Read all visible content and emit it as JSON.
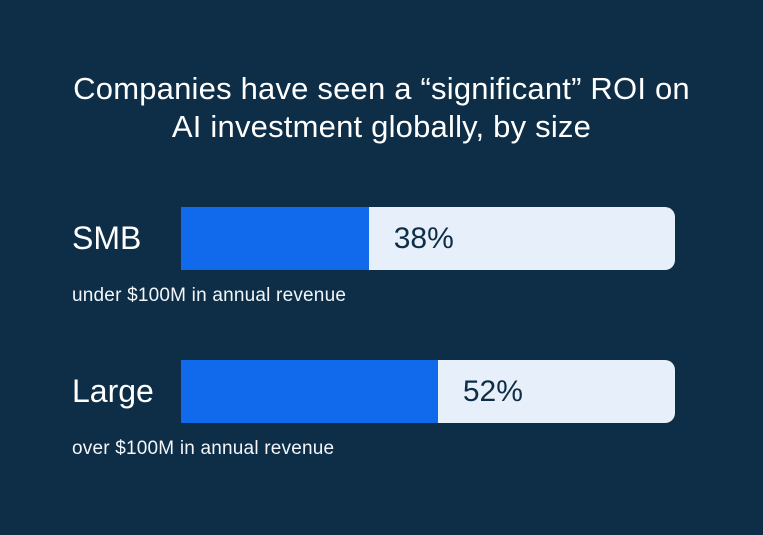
{
  "header": {
    "title_line1": "Companies have seen a “significant” ROI on",
    "title_line2": "AI investment globally, by size"
  },
  "colors": {
    "background": "#0d2e46",
    "bar_fill": "#1169ec",
    "bar_track": "#e7effa",
    "category_text": "#ffffff",
    "value_text": "#0d2e46"
  },
  "chart_data": {
    "type": "bar",
    "orientation": "horizontal",
    "title": "Companies have seen a “significant” ROI on AI investment globally, by size",
    "categories": [
      "SMB",
      "Large"
    ],
    "category_sublabels": [
      "under $100M in annual revenue",
      "over $100M in annual revenue"
    ],
    "values": [
      38,
      52
    ],
    "value_labels": [
      "38%",
      "52%"
    ],
    "unit": "%",
    "xlim": [
      0,
      100
    ],
    "grid": false,
    "legend": false
  },
  "bars": [
    {
      "label": "SMB",
      "sublabel": "under $100M in annual revenue",
      "value": 38,
      "value_label": "38%"
    },
    {
      "label": "Large",
      "sublabel": "over $100M in annual revenue",
      "value": 52,
      "value_label": "52%"
    }
  ]
}
